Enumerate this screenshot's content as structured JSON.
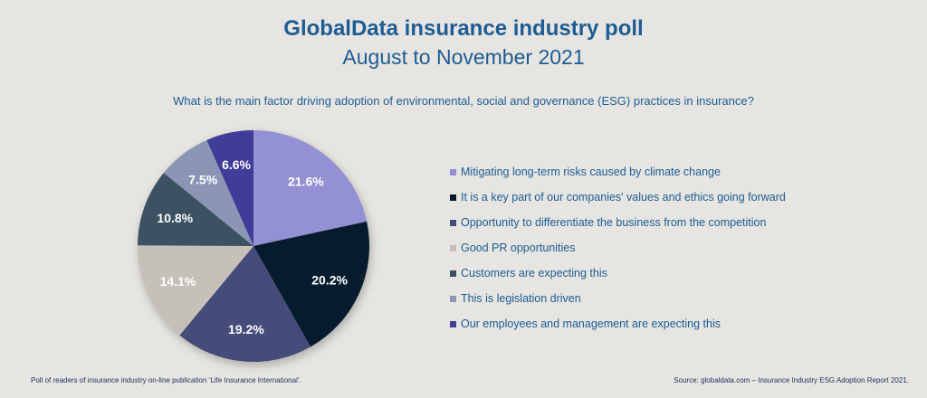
{
  "title": "GlobalData insurance industry poll",
  "subtitle": "August to November 2021",
  "question": "What is the main factor driving adoption of environmental, social and governance (ESG) practices in insurance?",
  "footer_left": "Poll of readers of insurance industry on-line publication ‘Life Insurance International’.",
  "footer_right": "Source: globaldata.com – Insurance Industry ESG Adoption Report 2021.",
  "chart_data": {
    "type": "pie",
    "legend_position": "right",
    "slices": [
      {
        "label": "Mitigating long-term risks caused by climate change",
        "value": 21.6,
        "display": "21.6%",
        "color": "#9490d4"
      },
      {
        "label": "It is a key part of our companies' values and ethics going forward",
        "value": 20.2,
        "display": "20.2%",
        "color": "#061c2e"
      },
      {
        "label": "Opportunity to differentiate the business from the competition",
        "value": 19.2,
        "display": "19.2%",
        "color": "#454c7a"
      },
      {
        "label": "Good PR opportunities",
        "value": 14.1,
        "display": "14.1%",
        "color": "#c5c0b8"
      },
      {
        "label": "Customers are expecting this",
        "value": 10.8,
        "display": "10.8%",
        "color": "#3c5262"
      },
      {
        "label": "This is legislation driven",
        "value": 7.5,
        "display": "7.5%",
        "color": "#8b96b5"
      },
      {
        "label": "Our employees and management are expecting this",
        "value": 6.6,
        "display": "6.6%",
        "color": "#3f3d97"
      }
    ]
  }
}
